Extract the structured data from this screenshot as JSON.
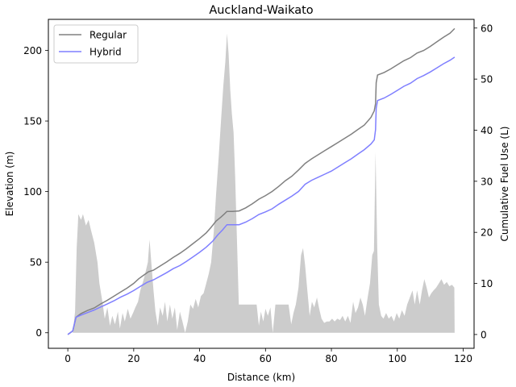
{
  "chart_data": {
    "type": "line",
    "title": "Auckland-Waikato",
    "xlabel": "Distance (km)",
    "ylabel_left": "Elevation (m)",
    "ylabel_right": "Cumulative Fuel Use (L)",
    "xlim": [
      -5.9,
      123.3
    ],
    "ylim_left": [
      -11,
      222
    ],
    "ylim_right": [
      -2.7,
      61.7
    ],
    "x_ticks": [
      0,
      20,
      40,
      60,
      80,
      100,
      120
    ],
    "y_ticks_left": [
      0,
      50,
      100,
      150,
      200
    ],
    "y_ticks_right": [
      0,
      10,
      20,
      30,
      40,
      50,
      60
    ],
    "legend": {
      "position": "top-left"
    },
    "elevation": {
      "name": "",
      "color": "#cccccc",
      "points": [
        [
          0,
          0
        ],
        [
          1.5,
          0
        ],
        [
          2.2,
          15
        ],
        [
          2.7,
          60
        ],
        [
          3.2,
          84
        ],
        [
          4,
          80
        ],
        [
          4.6,
          84
        ],
        [
          5.5,
          76
        ],
        [
          6.3,
          80
        ],
        [
          7,
          73
        ],
        [
          8,
          64
        ],
        [
          9,
          50
        ],
        [
          9.6,
          35
        ],
        [
          10.5,
          22
        ],
        [
          11.2,
          10
        ],
        [
          12,
          18
        ],
        [
          12.8,
          5
        ],
        [
          13.5,
          12
        ],
        [
          14.3,
          6
        ],
        [
          15.2,
          15
        ],
        [
          15.8,
          3
        ],
        [
          16.6,
          14
        ],
        [
          17.3,
          8
        ],
        [
          18.2,
          17
        ],
        [
          19,
          10
        ],
        [
          19.8,
          14
        ],
        [
          20.5,
          18
        ],
        [
          21.3,
          22
        ],
        [
          22,
          30
        ],
        [
          22.8,
          36
        ],
        [
          23.5,
          42
        ],
        [
          24.3,
          50
        ],
        [
          24.8,
          66
        ],
        [
          25.4,
          48
        ],
        [
          26,
          30
        ],
        [
          26.6,
          15
        ],
        [
          27.3,
          5
        ],
        [
          28,
          18
        ],
        [
          28.8,
          12
        ],
        [
          29.5,
          22
        ],
        [
          30.2,
          8
        ],
        [
          31,
          20
        ],
        [
          31.7,
          10
        ],
        [
          32.5,
          18
        ],
        [
          33.2,
          2
        ],
        [
          34,
          15
        ],
        [
          34.8,
          8
        ],
        [
          35.6,
          0
        ],
        [
          36.4,
          8
        ],
        [
          37.2,
          20
        ],
        [
          38,
          17
        ],
        [
          38.8,
          24
        ],
        [
          39.6,
          18
        ],
        [
          40.4,
          26
        ],
        [
          41.2,
          28
        ],
        [
          42,
          35
        ],
        [
          42.8,
          42
        ],
        [
          43.5,
          50
        ],
        [
          44.3,
          72
        ],
        [
          45,
          98
        ],
        [
          45.8,
          125
        ],
        [
          46.5,
          150
        ],
        [
          47.2,
          175
        ],
        [
          47.8,
          192
        ],
        [
          48.3,
          212
        ],
        [
          48.8,
          198
        ],
        [
          49.3,
          172
        ],
        [
          49.8,
          155
        ],
        [
          50.3,
          142
        ],
        [
          50.8,
          110
        ],
        [
          51.4,
          60
        ],
        [
          51.9,
          20
        ],
        [
          52.5,
          20
        ],
        [
          53.5,
          20
        ],
        [
          54.5,
          20
        ],
        [
          55.5,
          20
        ],
        [
          56.5,
          20
        ],
        [
          57.3,
          20
        ],
        [
          58,
          5
        ],
        [
          58.6,
          15
        ],
        [
          59.3,
          8
        ],
        [
          60,
          17
        ],
        [
          60.7,
          12
        ],
        [
          61.5,
          18
        ],
        [
          62.2,
          0
        ],
        [
          63,
          20
        ],
        [
          64,
          20
        ],
        [
          65,
          20
        ],
        [
          66,
          20
        ],
        [
          67,
          20
        ],
        [
          67.8,
          6
        ],
        [
          68.5,
          14
        ],
        [
          69.2,
          20
        ],
        [
          70,
          32
        ],
        [
          70.8,
          55
        ],
        [
          71.4,
          60
        ],
        [
          72,
          48
        ],
        [
          72.7,
          30
        ],
        [
          73.4,
          12
        ],
        [
          74.1,
          22
        ],
        [
          74.8,
          18
        ],
        [
          75.6,
          25
        ],
        [
          76.3,
          17
        ],
        [
          77,
          10
        ],
        [
          77.8,
          7
        ],
        [
          78.6,
          8
        ],
        [
          79.4,
          8
        ],
        [
          80.2,
          10
        ],
        [
          81,
          8
        ],
        [
          81.8,
          10
        ],
        [
          82.6,
          9
        ],
        [
          83.4,
          12
        ],
        [
          84.2,
          8
        ],
        [
          85,
          12
        ],
        [
          85.8,
          7
        ],
        [
          86.6,
          22
        ],
        [
          87.3,
          14
        ],
        [
          88.1,
          18
        ],
        [
          88.8,
          25
        ],
        [
          89.5,
          20
        ],
        [
          90.2,
          12
        ],
        [
          91,
          25
        ],
        [
          91.7,
          35
        ],
        [
          92.4,
          55
        ],
        [
          92.9,
          58
        ],
        [
          93.4,
          128
        ],
        [
          93.9,
          60
        ],
        [
          94.4,
          20
        ],
        [
          95.1,
          12
        ],
        [
          95.8,
          10
        ],
        [
          96.6,
          14
        ],
        [
          97.4,
          10
        ],
        [
          98.2,
          12
        ],
        [
          99,
          8
        ],
        [
          99.8,
          14
        ],
        [
          100.6,
          10
        ],
        [
          101.4,
          16
        ],
        [
          102.2,
          12
        ],
        [
          103,
          20
        ],
        [
          103.8,
          25
        ],
        [
          104.6,
          30
        ],
        [
          105.3,
          20
        ],
        [
          106,
          30
        ],
        [
          106.8,
          20
        ],
        [
          107.5,
          30
        ],
        [
          108.2,
          38
        ],
        [
          108.9,
          32
        ],
        [
          109.6,
          25
        ],
        [
          110.3,
          28
        ],
        [
          111,
          30
        ],
        [
          111.8,
          32
        ],
        [
          112.6,
          35
        ],
        [
          113.4,
          38
        ],
        [
          114.2,
          34
        ],
        [
          115,
          36
        ],
        [
          115.8,
          33
        ],
        [
          116.6,
          34
        ],
        [
          117.3,
          32
        ],
        [
          117.4,
          0
        ]
      ]
    },
    "series": [
      {
        "name": "Regular",
        "color": "#808080",
        "points": [
          [
            0,
            0
          ],
          [
            1.5,
            0.7
          ],
          [
            2.5,
            3.4
          ],
          [
            4,
            4.1
          ],
          [
            6,
            4.7
          ],
          [
            8,
            5.2
          ],
          [
            10,
            6.0
          ],
          [
            12,
            6.7
          ],
          [
            14,
            7.5
          ],
          [
            16,
            8.3
          ],
          [
            18,
            9.1
          ],
          [
            20,
            10.0
          ],
          [
            21.5,
            10.9
          ],
          [
            23,
            11.6
          ],
          [
            24.5,
            12.3
          ],
          [
            26,
            12.6
          ],
          [
            28,
            13.4
          ],
          [
            30,
            14.2
          ],
          [
            32,
            15.1
          ],
          [
            34,
            15.9
          ],
          [
            36,
            16.8
          ],
          [
            38,
            17.8
          ],
          [
            40,
            18.8
          ],
          [
            42,
            19.9
          ],
          [
            43.5,
            21.0
          ],
          [
            45,
            22.2
          ],
          [
            46.5,
            23.0
          ],
          [
            47.5,
            23.6
          ],
          [
            48.3,
            24.1
          ],
          [
            50,
            24.1
          ],
          [
            52,
            24.2
          ],
          [
            54,
            24.8
          ],
          [
            56,
            25.6
          ],
          [
            58,
            26.5
          ],
          [
            60,
            27.2
          ],
          [
            62,
            28.0
          ],
          [
            64,
            29.0
          ],
          [
            66,
            30.1
          ],
          [
            68,
            31.0
          ],
          [
            70,
            32.2
          ],
          [
            72,
            33.5
          ],
          [
            74,
            34.4
          ],
          [
            76,
            35.2
          ],
          [
            78,
            36.0
          ],
          [
            80,
            36.8
          ],
          [
            82,
            37.6
          ],
          [
            84,
            38.4
          ],
          [
            86,
            39.2
          ],
          [
            88,
            40.1
          ],
          [
            90,
            41.0
          ],
          [
            92,
            42.5
          ],
          [
            93,
            43.8
          ],
          [
            93.4,
            45.2
          ],
          [
            93.6,
            49.3
          ],
          [
            94,
            50.8
          ],
          [
            96,
            51.3
          ],
          [
            98,
            52.0
          ],
          [
            100,
            52.8
          ],
          [
            102,
            53.6
          ],
          [
            104,
            54.2
          ],
          [
            106,
            55.1
          ],
          [
            108,
            55.6
          ],
          [
            110,
            56.4
          ],
          [
            112,
            57.3
          ],
          [
            114,
            58.2
          ],
          [
            116,
            59.0
          ],
          [
            117.4,
            59.9
          ]
        ]
      },
      {
        "name": "Hybrid",
        "color": "#7f7fff",
        "points": [
          [
            0,
            0
          ],
          [
            1.5,
            0.7
          ],
          [
            2.5,
            3.4
          ],
          [
            4,
            3.8
          ],
          [
            6,
            4.3
          ],
          [
            8,
            4.8
          ],
          [
            10,
            5.4
          ],
          [
            12,
            6.0
          ],
          [
            14,
            6.6
          ],
          [
            16,
            7.3
          ],
          [
            18,
            7.9
          ],
          [
            20,
            8.6
          ],
          [
            22,
            9.4
          ],
          [
            24,
            10.2
          ],
          [
            26,
            10.7
          ],
          [
            28,
            11.4
          ],
          [
            30,
            12.1
          ],
          [
            32,
            12.9
          ],
          [
            34,
            13.5
          ],
          [
            36,
            14.3
          ],
          [
            38,
            15.2
          ],
          [
            40,
            16.1
          ],
          [
            42,
            17.1
          ],
          [
            44,
            18.3
          ],
          [
            45.5,
            19.5
          ],
          [
            47,
            20.5
          ],
          [
            48.3,
            21.5
          ],
          [
            50,
            21.5
          ],
          [
            52,
            21.5
          ],
          [
            54,
            22.0
          ],
          [
            56,
            22.7
          ],
          [
            58,
            23.5
          ],
          [
            60,
            24.0
          ],
          [
            62,
            24.6
          ],
          [
            64,
            25.5
          ],
          [
            66,
            26.3
          ],
          [
            68,
            27.1
          ],
          [
            70,
            28.0
          ],
          [
            72,
            29.4
          ],
          [
            74,
            30.2
          ],
          [
            76,
            30.8
          ],
          [
            78,
            31.4
          ],
          [
            80,
            32.0
          ],
          [
            82,
            32.8
          ],
          [
            84,
            33.6
          ],
          [
            86,
            34.4
          ],
          [
            88,
            35.3
          ],
          [
            90,
            36.2
          ],
          [
            92,
            37.3
          ],
          [
            93,
            38.1
          ],
          [
            93.4,
            40.1
          ],
          [
            93.6,
            44.3
          ],
          [
            94,
            45.8
          ],
          [
            96,
            46.3
          ],
          [
            98,
            47.0
          ],
          [
            100,
            47.8
          ],
          [
            102,
            48.6
          ],
          [
            104,
            49.2
          ],
          [
            106,
            50.1
          ],
          [
            108,
            50.7
          ],
          [
            110,
            51.4
          ],
          [
            112,
            52.2
          ],
          [
            114,
            53.0
          ],
          [
            116,
            53.7
          ],
          [
            117.4,
            54.3
          ]
        ]
      }
    ]
  }
}
